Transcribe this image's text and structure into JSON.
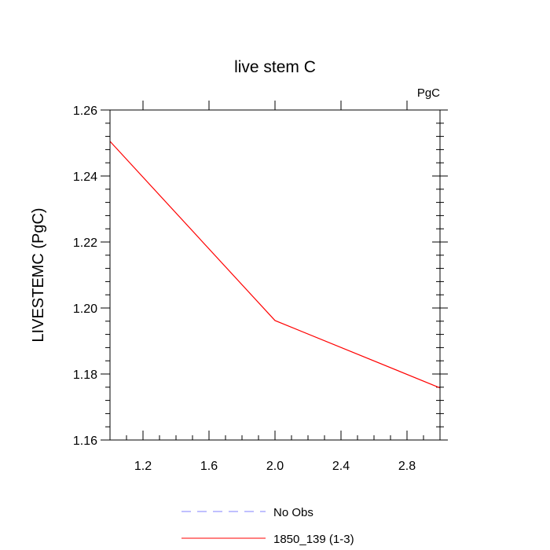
{
  "chart_data": {
    "type": "line",
    "title": "live stem C",
    "units_label": "PgC",
    "ylabel": "LIVESTEMC  (PgC)",
    "xlabel": "",
    "xlim": [
      1.0,
      3.0
    ],
    "ylim": [
      1.16,
      1.26
    ],
    "x_ticks": [
      1.2,
      1.6,
      2.0,
      2.4,
      2.8
    ],
    "x_tick_labels": [
      "1.2",
      "1.6",
      "2.0",
      "2.4",
      "2.8"
    ],
    "y_ticks": [
      1.16,
      1.18,
      1.2,
      1.22,
      1.24,
      1.26
    ],
    "y_tick_labels": [
      "1.16",
      "1.18",
      "1.20",
      "1.22",
      "1.24",
      "1.26"
    ],
    "grid": false,
    "legend_position": "bottom",
    "series": [
      {
        "name": "No Obs",
        "color": "#8080ff",
        "dash": true,
        "x": [],
        "y": []
      },
      {
        "name": "1850_139 (1-3)",
        "color": "#ff0000",
        "dash": false,
        "x": [
          1.0,
          2.0,
          3.0
        ],
        "y": [
          1.2505,
          1.1962,
          1.1758
        ]
      }
    ]
  }
}
